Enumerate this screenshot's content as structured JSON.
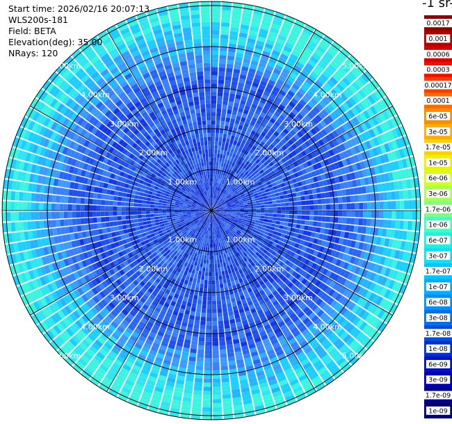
{
  "info": {
    "start_time": "Start time: 2026/02/16 20:07:13",
    "instrument": "WLS200s-181",
    "field": "Field: BETA",
    "elevation": "Elevation(deg): 35.00",
    "nrays": "NRays: 120"
  },
  "colorbar": {
    "title": "-1 sr-",
    "labels": [
      "0.0017",
      "0.001",
      "0.0006",
      "0.0003",
      "0.00017",
      "0.0001",
      "6e-05",
      "3e-05",
      "1.7e-05",
      "1e-05",
      "6e-06",
      "3e-06",
      "1.7e-06",
      "1e-06",
      "6e-07",
      "3e-07",
      "1.7e-07",
      "1e-07",
      "6e-08",
      "3e-08",
      "1.7e-08",
      "1e-08",
      "6e-09",
      "3e-09",
      "1.7e-09",
      "1e-09"
    ],
    "colors": [
      "#8b0000",
      "#b00000",
      "#d60000",
      "#f01000",
      "#ff3c00",
      "#ff6a00",
      "#ff8c00",
      "#ffae00",
      "#ffd000",
      "#f0f000",
      "#d0ff20",
      "#a8ff50",
      "#80ff80",
      "#40ffc0",
      "#20f0e0",
      "#10e0f0",
      "#00c8ff",
      "#00b0ff",
      "#0090ff",
      "#0070f0",
      "#0050e0",
      "#0030d0",
      "#0010c8",
      "#0000b0",
      "#000090",
      "#000070"
    ]
  },
  "chart_data": {
    "type": "ppi_scan",
    "field": "BETA",
    "elevation_deg": 35.0,
    "nrays": 120,
    "range_rings_km": [
      1,
      2,
      3,
      4,
      5
    ],
    "range_labels": [
      "1.00km",
      "2.00km",
      "3.00km",
      "4.00km",
      "5.00km"
    ],
    "max_range_km": 5.1,
    "typical_values": {
      "range_0_2km": "3e-08 to 1e-08",
      "range_2_3.5km": "1e-08 to 3e-08",
      "range_3.5_5km": "6e-08 to 1e-07"
    }
  }
}
